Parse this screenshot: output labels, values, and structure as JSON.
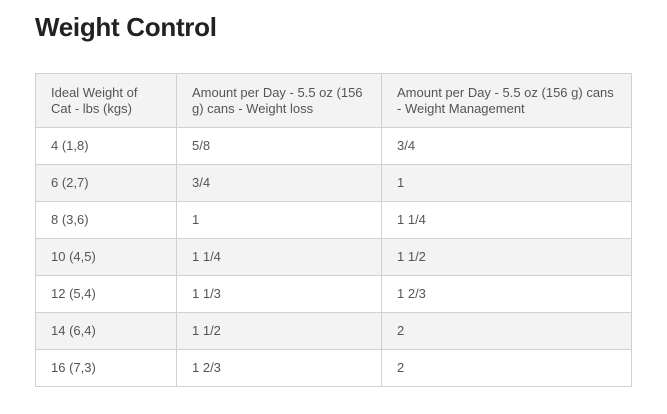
{
  "header": {
    "title": "Weight Control"
  },
  "table": {
    "columns": [
      "Ideal Weight of Cat - lbs (kgs)",
      "Amount per Day - 5.5 oz (156 g) cans - Weight loss",
      "Amount per Day - 5.5 oz (156 g) cans - Weight Management"
    ],
    "rows": [
      [
        "4 (1,8)",
        "5/8",
        "3/4"
      ],
      [
        "6 (2,7)",
        "3/4",
        "1"
      ],
      [
        "8 (3,6)",
        "1",
        "1 1/4"
      ],
      [
        "10 (4,5)",
        "1 1/4",
        "1 1/2"
      ],
      [
        "12 (5,4)",
        "1 1/3",
        "1 2/3"
      ],
      [
        "14 (6,4)",
        "1 1/2",
        "2"
      ],
      [
        "16 (7,3)",
        "1 2/3",
        "2"
      ]
    ]
  }
}
